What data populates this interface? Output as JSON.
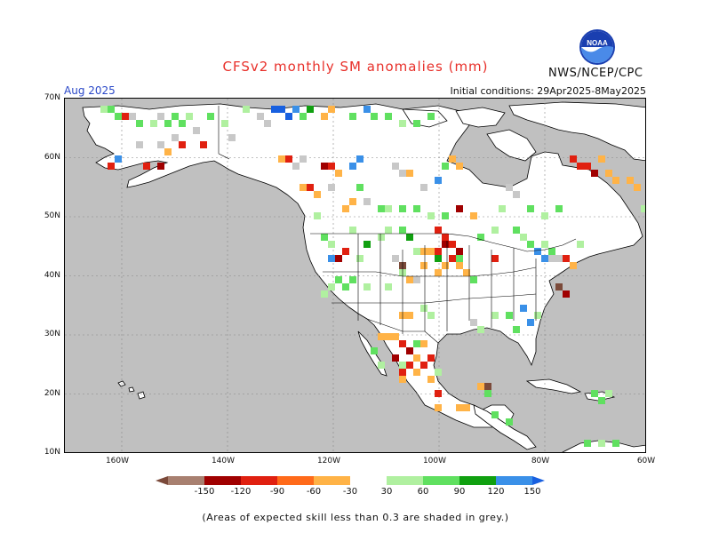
{
  "title": "CFSv2 monthly SM anomalies (mm)",
  "agency": "NWS/NCEP/CPC",
  "logo_text": "NOAA",
  "month": "Aug 2025",
  "initial_conditions": "Initial conditions: 29Apr2025-8May2025",
  "lat_labels": [
    "70N",
    "60N",
    "50N",
    "40N",
    "30N",
    "20N",
    "10N"
  ],
  "lon_labels": [
    "160W",
    "140W",
    "120W",
    "100W",
    "80W",
    "60W"
  ],
  "legend": {
    "ticks": [
      "-150",
      "-120",
      "-90",
      "-60",
      "-30",
      "30",
      "60",
      "90",
      "120",
      "150"
    ],
    "colors": [
      "#7b4a3a",
      "#a88070",
      "#a00000",
      "#e02010",
      "#ff6a1a",
      "#ffb347",
      "#ffffff",
      "#b0f0a0",
      "#60e060",
      "#10a010",
      "#3a90e8",
      "#1860e0"
    ]
  },
  "note": "(Areas of expected skill less than 0.3 are shaded in grey.)",
  "colors": {
    "land": "#ffffff",
    "ocean": "#c0c0c0",
    "low_skill": "#c8c8c8",
    "title": "#e8302a",
    "month": "#2a48c8"
  }
}
